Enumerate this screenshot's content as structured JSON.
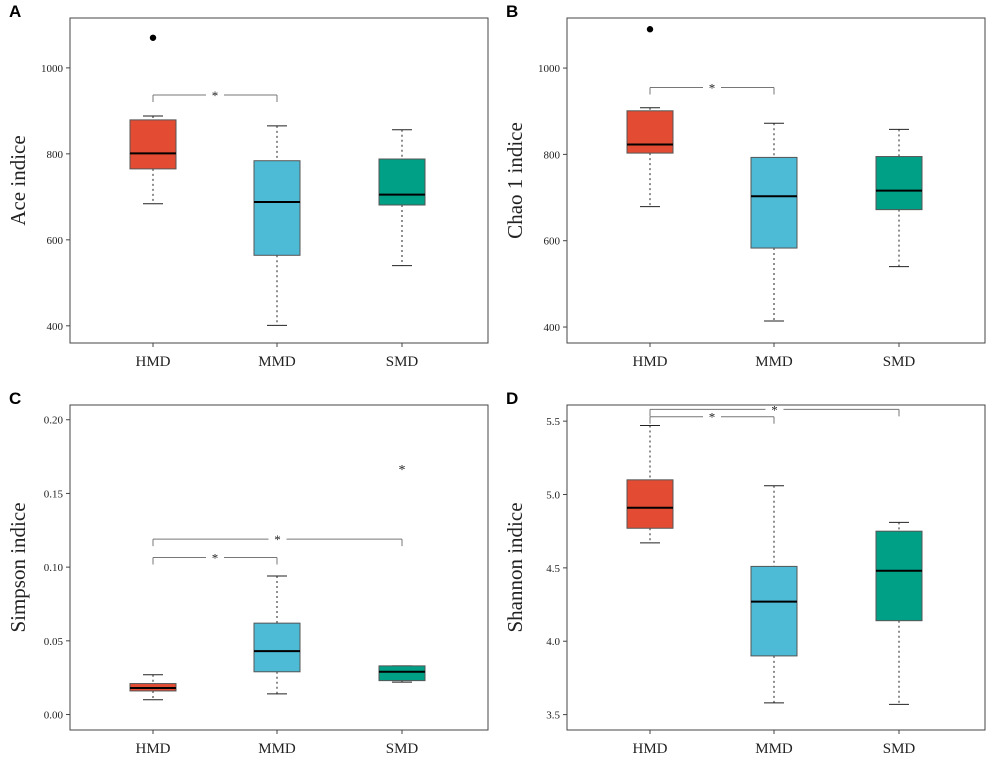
{
  "chart_data": [
    {
      "panel": "A",
      "type": "box",
      "ylabel": "Ace indice",
      "categories": [
        "HMD",
        "MMD",
        "SMD"
      ],
      "yticks": [
        400,
        600,
        800,
        1000
      ],
      "tick_format": "0",
      "ylim": [
        360,
        1116
      ],
      "boxes": [
        {
          "min": 684,
          "q1": 765,
          "median": 801,
          "q3": 879,
          "max": 888,
          "outliers": [
            1070
          ]
        },
        {
          "min": 401,
          "q1": 564,
          "median": 688,
          "q3": 784,
          "max": 865,
          "outliers": []
        },
        {
          "min": 540,
          "q1": 681,
          "median": 705,
          "q3": 788,
          "max": 856,
          "outliers": []
        }
      ],
      "outlier_marker": "dot",
      "significance": [
        {
          "from": 0,
          "to": 1,
          "y": 937,
          "label": "*"
        }
      ]
    },
    {
      "panel": "B",
      "type": "box",
      "ylabel": "Chao 1 indice",
      "categories": [
        "HMD",
        "MMD",
        "SMD"
      ],
      "yticks": [
        400,
        600,
        800,
        1000
      ],
      "tick_format": "0",
      "ylim": [
        363,
        1116
      ],
      "boxes": [
        {
          "min": 679,
          "q1": 803,
          "median": 823,
          "q3": 901,
          "max": 908,
          "outliers": [
            1090
          ]
        },
        {
          "min": 414,
          "q1": 583,
          "median": 703,
          "q3": 793,
          "max": 872,
          "outliers": []
        },
        {
          "min": 540,
          "q1": 672,
          "median": 716,
          "q3": 795,
          "max": 858,
          "outliers": []
        }
      ],
      "outlier_marker": "dot",
      "significance": [
        {
          "from": 0,
          "to": 1,
          "y": 955,
          "label": "*"
        }
      ]
    },
    {
      "panel": "C",
      "type": "box",
      "ylabel": "Simpson indice",
      "categories": [
        "HMD",
        "MMD",
        "SMD"
      ],
      "yticks": [
        0,
        0.05,
        0.1,
        0.15,
        0.2
      ],
      "tick_format": "2",
      "ylim": [
        -0.0105,
        0.21
      ],
      "boxes": [
        {
          "min": 0.01,
          "q1": 0.016,
          "median": 0.018,
          "q3": 0.021,
          "max": 0.027,
          "outliers": []
        },
        {
          "min": 0.014,
          "q1": 0.029,
          "median": 0.043,
          "q3": 0.062,
          "max": 0.094,
          "outliers": []
        },
        {
          "min": 0.022,
          "q1": 0.023,
          "median": 0.029,
          "q3": 0.033,
          "max": 0.033,
          "outliers": [
            0.168
          ]
        }
      ],
      "outlier_marker": "star",
      "significance": [
        {
          "from": 0,
          "to": 1,
          "y": 0.1065,
          "label": "*"
        },
        {
          "from": 0,
          "to": 2,
          "y": 0.119,
          "label": "*"
        }
      ]
    },
    {
      "panel": "D",
      "type": "box",
      "ylabel": "Shannon indice",
      "categories": [
        "HMD",
        "MMD",
        "SMD"
      ],
      "yticks": [
        3.5,
        4.0,
        4.5,
        5.0,
        5.5
      ],
      "tick_format": "1",
      "ylim": [
        3.395,
        5.61
      ],
      "boxes": [
        {
          "min": 4.67,
          "q1": 4.77,
          "median": 4.91,
          "q3": 5.1,
          "max": 5.47,
          "outliers": []
        },
        {
          "min": 3.58,
          "q1": 3.9,
          "median": 4.27,
          "q3": 4.51,
          "max": 5.06,
          "outliers": []
        },
        {
          "min": 3.57,
          "q1": 4.14,
          "median": 4.48,
          "q3": 4.75,
          "max": 4.81,
          "outliers": []
        }
      ],
      "outlier_marker": "dot",
      "significance": [
        {
          "from": 0,
          "to": 1,
          "y": 5.53,
          "label": "*"
        },
        {
          "from": 0,
          "to": 2,
          "y": 5.58,
          "label": "*"
        }
      ]
    }
  ],
  "colors": {
    "HMD": "#e34c33",
    "MMD": "#4dbad6",
    "SMD": "#00a087"
  }
}
